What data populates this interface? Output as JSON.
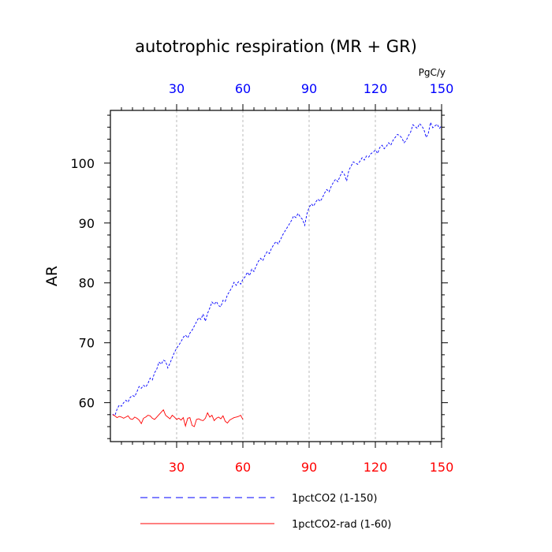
{
  "chart_data": {
    "type": "line",
    "title": "autotrophic respiration (MR + GR)",
    "units": "PgC/y",
    "ylabel": "AR",
    "xlabel": "",
    "xlim": [
      0,
      150
    ],
    "ylim": [
      53.5,
      108.8
    ],
    "x_ticks": [
      30,
      60,
      90,
      120,
      150
    ],
    "x_tick_labels_bottom": [
      "30",
      "60",
      "90",
      "120",
      "150"
    ],
    "x_tick_labels_top": [
      "30",
      "60",
      "90",
      "120",
      "150"
    ],
    "y_ticks": [
      60,
      70,
      80,
      90,
      100
    ],
    "y_tick_labels": [
      "60",
      "70",
      "80",
      "90",
      "100"
    ],
    "grid": "vertical-dashed-at-x-ticks",
    "legend_position": "bottom",
    "colors": {
      "top_axis_labels": "#0000ff",
      "bottom_axis_labels": "#ff0000"
    },
    "series": [
      {
        "name": "1pctCO2 (1-150)",
        "color": "#0000ff",
        "dash": "dashed",
        "x_start": 1,
        "values": [
          58.1,
          57.8,
          58.9,
          59.6,
          59.4,
          60.0,
          60.4,
          60.1,
          60.9,
          61.2,
          61.0,
          61.8,
          62.7,
          62.4,
          62.9,
          62.6,
          63.2,
          64.1,
          63.8,
          65.0,
          65.6,
          66.8,
          66.4,
          67.1,
          66.9,
          65.8,
          66.6,
          67.5,
          68.4,
          69.1,
          69.6,
          70.2,
          70.9,
          71.3,
          70.8,
          71.6,
          72.1,
          72.8,
          73.5,
          74.2,
          73.9,
          74.8,
          73.6,
          74.9,
          75.8,
          76.8,
          76.4,
          76.9,
          76.2,
          76.0,
          77.1,
          76.9,
          78.0,
          78.6,
          79.2,
          80.1,
          79.6,
          80.2,
          79.8,
          80.6,
          81.0,
          81.8,
          81.2,
          82.3,
          81.9,
          82.8,
          83.6,
          84.1,
          83.7,
          84.6,
          85.2,
          84.9,
          85.8,
          86.4,
          86.9,
          86.5,
          87.2,
          88.0,
          88.6,
          89.2,
          89.8,
          90.4,
          91.2,
          90.9,
          91.6,
          91.0,
          90.6,
          89.6,
          91.5,
          92.6,
          93.2,
          92.8,
          93.5,
          94.0,
          93.6,
          94.2,
          95.0,
          95.6,
          95.2,
          96.1,
          96.8,
          97.3,
          96.9,
          97.8,
          98.6,
          98.1,
          97.0,
          98.8,
          99.5,
          100.2,
          100.0,
          99.8,
          100.3,
          100.9,
          100.5,
          101.2,
          101.0,
          101.6,
          101.8,
          102.2,
          101.6,
          102.6,
          103.0,
          102.4,
          102.8,
          103.4,
          103.0,
          103.8,
          104.3,
          104.8,
          104.6,
          104.2,
          103.4,
          103.8,
          104.6,
          105.2,
          106.4,
          106.1,
          105.8,
          106.6,
          106.2,
          105.6,
          104.3,
          105.0,
          106.8,
          105.9,
          106.2,
          106.5,
          105.8,
          106.2
        ]
      },
      {
        "name": "1pctCO2-rad (1-60)",
        "color": "#ff0000",
        "dash": "solid",
        "x_start": 1,
        "values": [
          58.0,
          57.8,
          57.5,
          57.7,
          57.6,
          57.4,
          57.6,
          57.8,
          57.3,
          57.2,
          57.6,
          57.4,
          57.1,
          56.5,
          57.4,
          57.6,
          57.9,
          57.8,
          57.4,
          57.2,
          57.6,
          58.0,
          58.4,
          58.8,
          57.9,
          57.6,
          57.3,
          57.9,
          57.6,
          57.2,
          57.4,
          57.1,
          57.5,
          56.1,
          57.4,
          57.5,
          56.2,
          56.0,
          57.2,
          57.3,
          57.1,
          57.0,
          57.4,
          58.3,
          57.6,
          57.9,
          57.0,
          57.4,
          57.6,
          57.3,
          57.8,
          56.9,
          56.6,
          57.1,
          57.3,
          57.5,
          57.6,
          57.7,
          57.9,
          57.2
        ]
      }
    ]
  }
}
